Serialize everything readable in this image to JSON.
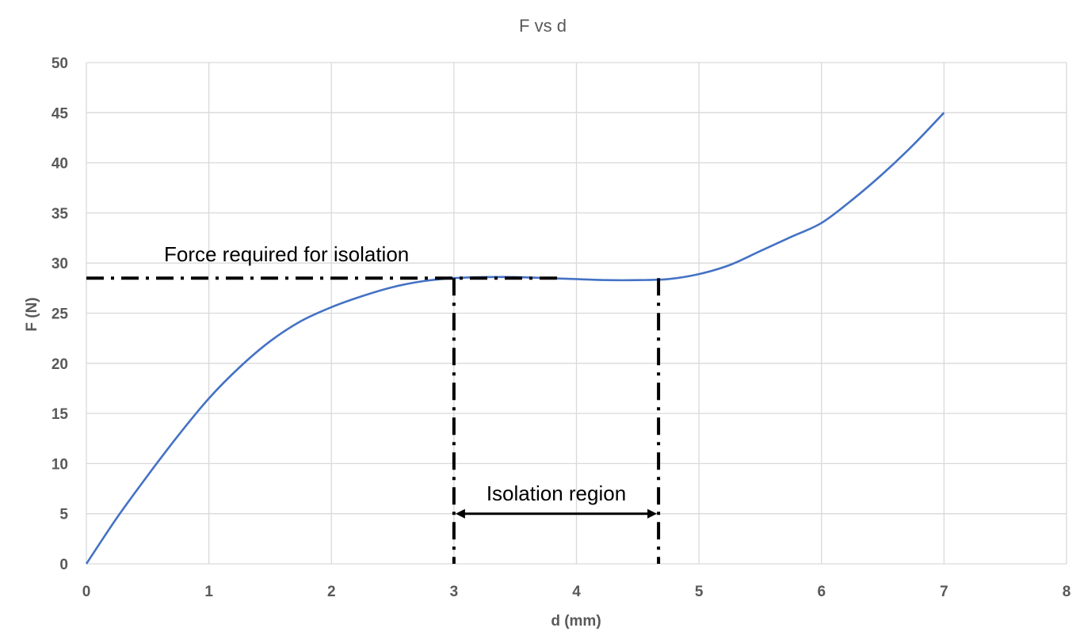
{
  "chart_data": {
    "type": "line",
    "title": "F vs d",
    "xlabel": "d (mm)",
    "ylabel": "F (N)",
    "xlim": [
      0,
      8
    ],
    "ylim": [
      0,
      50
    ],
    "x_ticks": [
      0,
      1,
      2,
      3,
      4,
      5,
      6,
      7,
      8
    ],
    "y_ticks": [
      0,
      5,
      10,
      15,
      20,
      25,
      30,
      35,
      40,
      45,
      50
    ],
    "grid": true,
    "series": [
      {
        "color": "#4472C4",
        "x": [
          0,
          0.25,
          0.5,
          0.75,
          1,
          1.25,
          1.5,
          1.75,
          2,
          2.25,
          2.5,
          2.75,
          3,
          3.25,
          3.5,
          3.75,
          4,
          4.25,
          4.5,
          4.75,
          5,
          5.25,
          5.5,
          5.75,
          6,
          6.25,
          6.5,
          6.75,
          7
        ],
        "y": [
          0,
          4.6,
          8.8,
          12.8,
          16.5,
          19.6,
          22.2,
          24.2,
          25.6,
          26.7,
          27.6,
          28.2,
          28.5,
          28.6,
          28.6,
          28.5,
          28.4,
          28.3,
          28.3,
          28.4,
          28.9,
          29.8,
          31.2,
          32.6,
          34.0,
          36.3,
          38.9,
          41.8,
          45.0
        ]
      }
    ],
    "annotations": {
      "force_text": "Force required for isolation",
      "force_level": 28.5,
      "region_text": "Isolation region",
      "region_start": 3.0,
      "region_end": 4.67,
      "arrow_y": 5,
      "line_color": "#000000"
    }
  }
}
